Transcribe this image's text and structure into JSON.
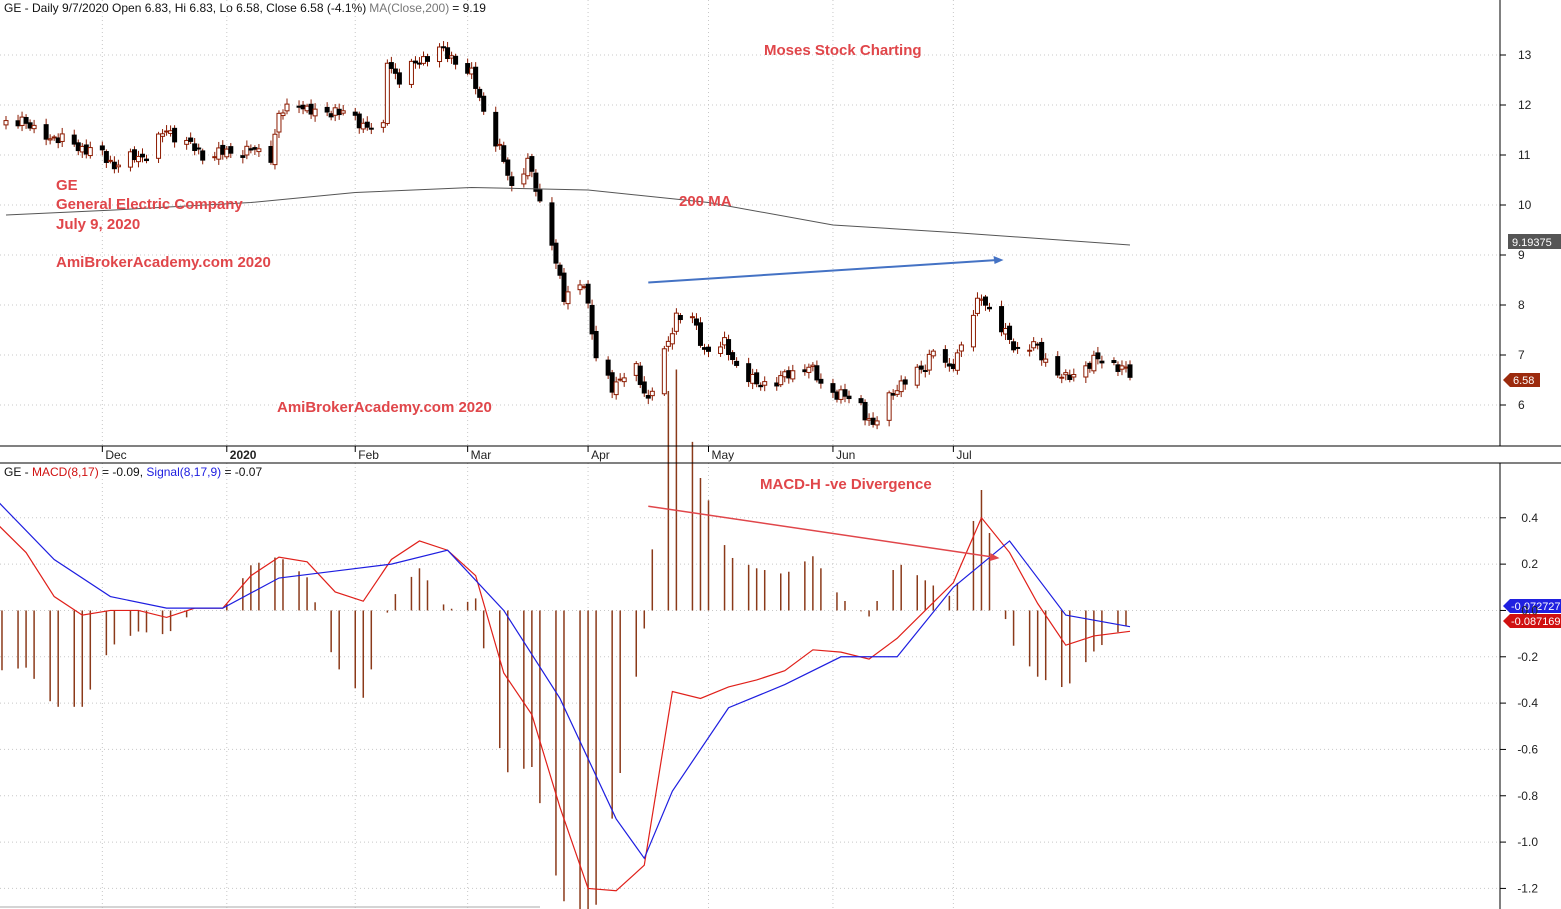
{
  "chart_data": [
    {
      "type": "candlestick",
      "header": {
        "prefix": "GE - Daily 9/7/2020 Open 6.83, Hi 6.83, Lo 6.58, Close 6.58 (-4.1%)",
        "ma_label": "MA(Close,200)",
        "ma_value": "= 9.19"
      },
      "ylim": [
        5.3,
        13.5
      ],
      "yticks": [
        6,
        7,
        8,
        9,
        10,
        11,
        12,
        13
      ],
      "months": [
        {
          "label": "Dec",
          "date": "2019-12-02"
        },
        {
          "label": "2020",
          "date": "2020-01-02"
        },
        {
          "label": "Feb",
          "date": "2020-02-03"
        },
        {
          "label": "Mar",
          "date": "2020-03-02"
        },
        {
          "label": "Apr",
          "date": "2020-04-01"
        },
        {
          "label": "May",
          "date": "2020-05-01"
        },
        {
          "label": "Jun",
          "date": "2020-06-01"
        },
        {
          "label": "Jul",
          "date": "2020-07-01"
        }
      ],
      "ohlc_points": [
        {
          "date": "2019-11-08",
          "close": 11.6
        },
        {
          "date": "2019-11-12",
          "close": 11.75
        },
        {
          "date": "2019-11-15",
          "close": 11.45
        },
        {
          "date": "2019-11-20",
          "close": 11.35
        },
        {
          "date": "2019-11-25",
          "close": 11.2
        },
        {
          "date": "2019-12-02",
          "close": 11.0
        },
        {
          "date": "2019-12-05",
          "close": 10.8
        },
        {
          "date": "2019-12-10",
          "close": 10.95
        },
        {
          "date": "2019-12-13",
          "close": 11.0
        },
        {
          "date": "2019-12-18",
          "close": 11.5
        },
        {
          "date": "2019-12-23",
          "close": 11.25
        },
        {
          "date": "2019-12-27",
          "close": 11.0
        },
        {
          "date": "2020-01-02",
          "close": 11.05
        },
        {
          "date": "2020-01-08",
          "close": 11.1
        },
        {
          "date": "2020-01-13",
          "close": 11.0
        },
        {
          "date": "2020-01-15",
          "close": 11.8
        },
        {
          "date": "2020-01-20",
          "close": 12.05
        },
        {
          "date": "2020-01-24",
          "close": 11.8
        },
        {
          "date": "2020-01-29",
          "close": 11.9
        },
        {
          "date": "2020-02-03",
          "close": 11.7
        },
        {
          "date": "2020-02-07",
          "close": 11.55
        },
        {
          "date": "2020-02-10",
          "close": 11.5
        },
        {
          "date": "2020-02-11",
          "close": 12.9
        },
        {
          "date": "2020-02-14",
          "close": 12.5
        },
        {
          "date": "2020-02-19",
          "close": 12.9
        },
        {
          "date": "2020-02-24",
          "close": 13.1
        },
        {
          "date": "2020-02-28",
          "close": 12.9
        },
        {
          "date": "2020-03-03",
          "close": 12.6
        },
        {
          "date": "2020-03-06",
          "close": 11.9
        },
        {
          "date": "2020-03-10",
          "close": 11.1
        },
        {
          "date": "2020-03-13",
          "close": 10.35
        },
        {
          "date": "2020-03-17",
          "close": 10.9
        },
        {
          "date": "2020-03-20",
          "close": 10.0
        },
        {
          "date": "2020-03-23",
          "close": 9.3
        },
        {
          "date": "2020-03-26",
          "close": 8.1
        },
        {
          "date": "2020-03-31",
          "close": 8.5
        },
        {
          "date": "2020-04-03",
          "close": 6.9
        },
        {
          "date": "2020-04-07",
          "close": 6.4
        },
        {
          "date": "2020-04-09",
          "close": 6.5
        },
        {
          "date": "2020-04-13",
          "close": 6.7
        },
        {
          "date": "2020-04-16",
          "close": 6.1
        },
        {
          "date": "2020-04-20",
          "close": 7.0
        },
        {
          "date": "2020-04-23",
          "close": 7.8
        },
        {
          "date": "2020-04-27",
          "close": 7.7
        },
        {
          "date": "2020-04-30",
          "close": 7.1
        },
        {
          "date": "2020-05-05",
          "close": 7.2
        },
        {
          "date": "2020-05-08",
          "close": 6.8
        },
        {
          "date": "2020-05-13",
          "close": 6.4
        },
        {
          "date": "2020-05-18",
          "close": 6.5
        },
        {
          "date": "2020-05-21",
          "close": 6.6
        },
        {
          "date": "2020-05-26",
          "close": 6.8
        },
        {
          "date": "2020-05-29",
          "close": 6.4
        },
        {
          "date": "2020-06-03",
          "close": 6.2
        },
        {
          "date": "2020-06-08",
          "close": 6.0
        },
        {
          "date": "2020-06-11",
          "close": 5.55
        },
        {
          "date": "2020-06-16",
          "close": 6.3
        },
        {
          "date": "2020-06-19",
          "close": 6.45
        },
        {
          "date": "2020-06-24",
          "close": 6.8
        },
        {
          "date": "2020-06-26",
          "close": 7.1
        },
        {
          "date": "2020-06-30",
          "close": 6.7
        },
        {
          "date": "2020-07-03",
          "close": 7.2
        },
        {
          "date": "2020-07-08",
          "close": 8.2
        },
        {
          "date": "2020-07-10",
          "close": 7.9
        },
        {
          "date": "2020-07-14",
          "close": 7.4
        },
        {
          "date": "2020-07-17",
          "close": 7.1
        },
        {
          "date": "2020-07-21",
          "close": 7.2
        },
        {
          "date": "2020-07-24",
          "close": 6.9
        },
        {
          "date": "2020-07-29",
          "close": 6.5
        },
        {
          "date": "2020-08-03",
          "close": 6.8
        },
        {
          "date": "2020-08-06",
          "close": 6.9
        },
        {
          "date": "2020-08-11",
          "close": 6.8
        },
        {
          "date": "2020-08-14",
          "close": 6.6
        }
      ],
      "ma200": [
        {
          "date": "2019-11-08",
          "value": 9.8
        },
        {
          "date": "2019-12-05",
          "value": 9.9
        },
        {
          "date": "2020-01-08",
          "value": 10.05
        },
        {
          "date": "2020-02-03",
          "value": 10.25
        },
        {
          "date": "2020-03-03",
          "value": 10.35
        },
        {
          "date": "2020-04-01",
          "value": 10.3
        },
        {
          "date": "2020-05-01",
          "value": 10.05
        },
        {
          "date": "2020-06-01",
          "value": 9.6
        },
        {
          "date": "2020-07-01",
          "value": 9.45
        },
        {
          "date": "2020-08-14",
          "value": 9.2
        }
      ],
      "annotations": [
        {
          "text": "Moses Stock Charting"
        },
        {
          "text": "GE"
        },
        {
          "text": "General Electric Company"
        },
        {
          "text": "July 9, 2020"
        },
        {
          "text": "AmiBrokerAcademy.com 2020"
        },
        {
          "text": "200 MA"
        },
        {
          "text": "AmiBrokerAcademy.com 2020"
        }
      ],
      "trendline": [
        {
          "date": "2020-04-16",
          "value": 8.45
        },
        {
          "date": "2020-07-12",
          "value": 8.9
        }
      ],
      "badges": {
        "ma": "9.19375",
        "close": "6.58"
      },
      "colors": {
        "up": "#ffffff",
        "down": "#000000",
        "wick": "#8b1a00",
        "ma": "#555555",
        "trend": "#4472c4",
        "text": "#e0464a",
        "badge_ma": "#555555",
        "badge_close": "#9b2a0d"
      }
    },
    {
      "type": "macd",
      "header": {
        "prefix": "GE - ",
        "macd_label": "MACD(8,17)",
        "macd_value": " = -0.09, ",
        "signal_label": "Signal(8,17,9)",
        "signal_value": " = -0.07"
      },
      "ylim": [
        -1.25,
        0.52
      ],
      "yticks": [
        0.4,
        0.2,
        0.0,
        -0.2,
        -0.4,
        -0.6,
        -0.8,
        -1.0,
        -1.2
      ],
      "macd": [
        {
          "date": "2019-11-06",
          "value": 0.37
        },
        {
          "date": "2019-11-13",
          "value": 0.25
        },
        {
          "date": "2019-11-20",
          "value": 0.06
        },
        {
          "date": "2019-11-27",
          "value": -0.02
        },
        {
          "date": "2019-12-04",
          "value": 0.0
        },
        {
          "date": "2019-12-11",
          "value": 0.0
        },
        {
          "date": "2019-12-18",
          "value": -0.03
        },
        {
          "date": "2019-12-25",
          "value": 0.01
        },
        {
          "date": "2020-01-01",
          "value": 0.01
        },
        {
          "date": "2020-01-08",
          "value": 0.15
        },
        {
          "date": "2020-01-15",
          "value": 0.23
        },
        {
          "date": "2020-01-22",
          "value": 0.21
        },
        {
          "date": "2020-01-29",
          "value": 0.08
        },
        {
          "date": "2020-02-05",
          "value": 0.04
        },
        {
          "date": "2020-02-12",
          "value": 0.22
        },
        {
          "date": "2020-02-19",
          "value": 0.3
        },
        {
          "date": "2020-02-26",
          "value": 0.26
        },
        {
          "date": "2020-03-04",
          "value": 0.15
        },
        {
          "date": "2020-03-11",
          "value": -0.27
        },
        {
          "date": "2020-03-18",
          "value": -0.45
        },
        {
          "date": "2020-03-25",
          "value": -0.85
        },
        {
          "date": "2020-04-01",
          "value": -1.2
        },
        {
          "date": "2020-04-08",
          "value": -1.21
        },
        {
          "date": "2020-04-15",
          "value": -1.1
        },
        {
          "date": "2020-04-22",
          "value": -0.35
        },
        {
          "date": "2020-04-29",
          "value": -0.38
        },
        {
          "date": "2020-05-06",
          "value": -0.33
        },
        {
          "date": "2020-05-13",
          "value": -0.3
        },
        {
          "date": "2020-05-20",
          "value": -0.26
        },
        {
          "date": "2020-05-27",
          "value": -0.17
        },
        {
          "date": "2020-06-03",
          "value": -0.18
        },
        {
          "date": "2020-06-10",
          "value": -0.21
        },
        {
          "date": "2020-06-17",
          "value": -0.12
        },
        {
          "date": "2020-06-24",
          "value": 0.0
        },
        {
          "date": "2020-07-01",
          "value": 0.12
        },
        {
          "date": "2020-07-08",
          "value": 0.4
        },
        {
          "date": "2020-07-15",
          "value": 0.25
        },
        {
          "date": "2020-07-22",
          "value": 0.03
        },
        {
          "date": "2020-07-29",
          "value": -0.15
        },
        {
          "date": "2020-08-05",
          "value": -0.11
        },
        {
          "date": "2020-08-14",
          "value": -0.09
        }
      ],
      "signal": [
        {
          "date": "2019-11-06",
          "value": 0.47
        },
        {
          "date": "2019-11-20",
          "value": 0.22
        },
        {
          "date": "2019-12-04",
          "value": 0.06
        },
        {
          "date": "2019-12-18",
          "value": 0.01
        },
        {
          "date": "2020-01-01",
          "value": 0.01
        },
        {
          "date": "2020-01-15",
          "value": 0.14
        },
        {
          "date": "2020-01-29",
          "value": 0.17
        },
        {
          "date": "2020-02-12",
          "value": 0.2
        },
        {
          "date": "2020-02-26",
          "value": 0.26
        },
        {
          "date": "2020-03-11",
          "value": 0.0
        },
        {
          "date": "2020-03-25",
          "value": -0.38
        },
        {
          "date": "2020-04-08",
          "value": -0.9
        },
        {
          "date": "2020-04-15",
          "value": -1.07
        },
        {
          "date": "2020-04-22",
          "value": -0.78
        },
        {
          "date": "2020-05-06",
          "value": -0.42
        },
        {
          "date": "2020-05-20",
          "value": -0.32
        },
        {
          "date": "2020-06-03",
          "value": -0.2
        },
        {
          "date": "2020-06-17",
          "value": -0.2
        },
        {
          "date": "2020-07-01",
          "value": 0.1
        },
        {
          "date": "2020-07-15",
          "value": 0.3
        },
        {
          "date": "2020-07-29",
          "value": -0.02
        },
        {
          "date": "2020-08-14",
          "value": -0.07
        }
      ],
      "annotations": [
        {
          "text": "MACD-H -ve Divergence"
        }
      ],
      "trendline": [
        {
          "date": "2020-04-16",
          "value": 0.45
        },
        {
          "date": "2020-07-11",
          "value": 0.23
        }
      ],
      "badges": {
        "signal": "-0.072727",
        "macd": "-0.087169"
      },
      "colors": {
        "macd": "#e0201a",
        "signal": "#1e1ee0",
        "hist": "#8b3a1a",
        "badge_signal": "#2020e0",
        "badge_macd": "#d01010",
        "text": "#e0464a",
        "trend": "#e0464a"
      }
    }
  ]
}
